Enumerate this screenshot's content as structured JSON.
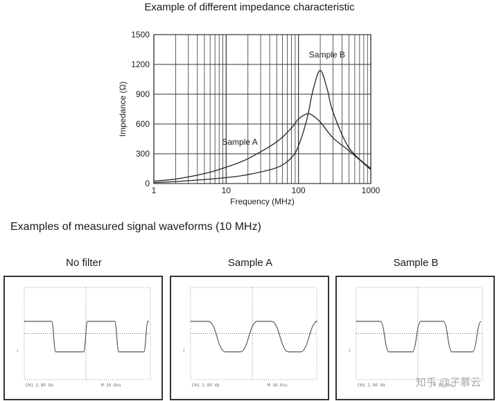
{
  "chart_title": "Example of different impedance characteristic",
  "chart_data": [
    {
      "type": "line",
      "title": "Example of different impedance characteristic",
      "xlabel": "Frequency (MHz)",
      "ylabel": "Impedance (Ω)",
      "x_scale": "log",
      "xlim": [
        1,
        1000
      ],
      "ylim": [
        0,
        1500
      ],
      "x_ticks": [
        "1",
        "10",
        "100",
        "1000"
      ],
      "y_ticks": [
        "0",
        "300",
        "600",
        "900",
        "1200",
        "1500"
      ],
      "grid": true,
      "series": [
        {
          "name": "Sample A",
          "x": [
            1,
            2,
            5,
            10,
            20,
            50,
            80,
            100,
            130,
            150,
            200,
            300,
            500,
            1000
          ],
          "values": [
            25,
            45,
            100,
            165,
            250,
            420,
            560,
            650,
            700,
            695,
            620,
            460,
            330,
            140
          ]
        },
        {
          "name": "Sample B",
          "x": [
            1,
            2,
            5,
            10,
            20,
            50,
            80,
            100,
            130,
            160,
            200,
            250,
            300,
            500,
            1000
          ],
          "values": [
            10,
            20,
            40,
            60,
            90,
            160,
            260,
            380,
            640,
            950,
            1140,
            950,
            720,
            360,
            150
          ]
        }
      ]
    }
  ],
  "waveforms": {
    "heading": "Examples of measured signal waveforms (10 MHz)",
    "panels": [
      {
        "title": "No filter",
        "shape": "sharp",
        "readout_left": "CH1  2.00 VΩ",
        "readout_right": "M 10.0ns"
      },
      {
        "title": "Sample A",
        "shape": "rounded",
        "readout_left": "CH1  2.00 VΩ",
        "readout_right": "M 10.0ns"
      },
      {
        "title": "Sample B",
        "shape": "medium",
        "readout_left": "CH1  2.00 VΩ",
        "readout_right": "M 10.0ns"
      }
    ]
  },
  "watermark": "知乎 @子慕云"
}
